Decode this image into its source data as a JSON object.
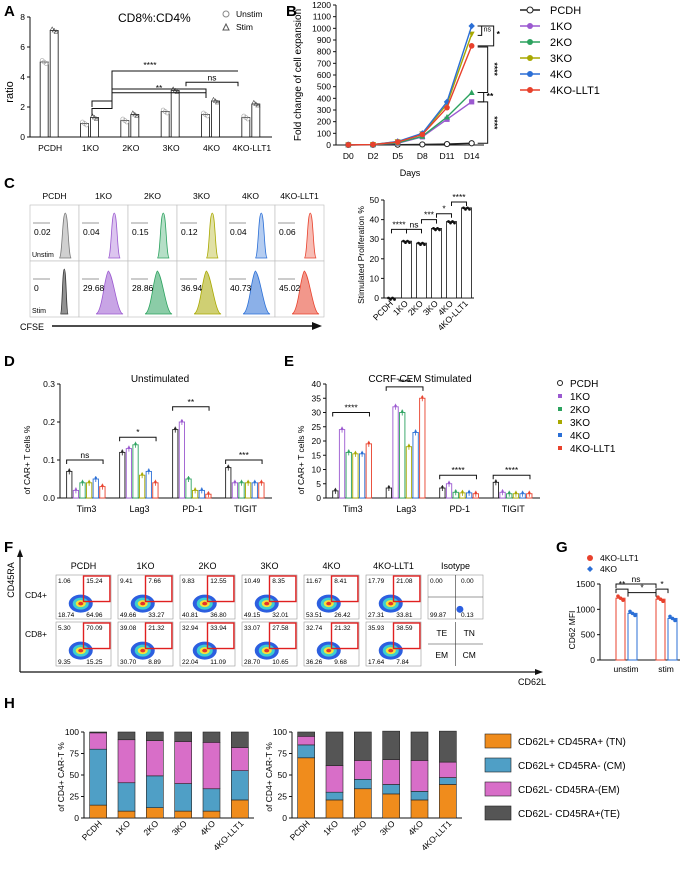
{
  "panels": [
    "A",
    "B",
    "C",
    "D",
    "E",
    "F",
    "G",
    "H"
  ],
  "colors": {
    "pcdh": "#222222",
    "ko1": "#9b59d0",
    "ko2": "#2ca25f",
    "ko3": "#a8a800",
    "ko4": "#2b6fd6",
    "ko4llt1": "#e8412c"
  },
  "groups": [
    "PCDH",
    "1KO",
    "2KO",
    "3KO",
    "4KO",
    "4KO-LLT1"
  ],
  "panelA": {
    "title": "CD8%:CD4%",
    "ylabel": "ratio",
    "legend": [
      "Unstim",
      "Stim"
    ],
    "sig": [
      "****",
      "**",
      "ns"
    ],
    "chart_data": {
      "type": "bar",
      "categories": [
        "PCDH",
        "1KO",
        "2KO",
        "3KO",
        "4KO",
        "4KO-LLT1"
      ],
      "series": [
        {
          "name": "Unstim",
          "values": [
            5.0,
            0.9,
            1.1,
            1.7,
            1.5,
            1.3
          ]
        },
        {
          "name": "Stim",
          "values": [
            7.1,
            1.3,
            1.5,
            3.1,
            2.4,
            2.2
          ]
        }
      ],
      "ylim": [
        0,
        8
      ],
      "yticks": [
        "0",
        "2",
        "4",
        "6",
        "8"
      ]
    }
  },
  "panelB": {
    "ylabel": "Fold change of cell expansion",
    "xlabel": "Days",
    "sig": [
      "ns",
      "*",
      "****",
      "**",
      "****"
    ],
    "chart_data": {
      "type": "line",
      "x": [
        "D0",
        "D2",
        "D5",
        "D8",
        "D11",
        "D14"
      ],
      "series": [
        {
          "name": "PCDH",
          "values": [
            1,
            2,
            3,
            5,
            8,
            15
          ]
        },
        {
          "name": "1KO",
          "values": [
            1,
            3,
            15,
            70,
            220,
            370
          ]
        },
        {
          "name": "2KO",
          "values": [
            1,
            3,
            18,
            75,
            240,
            450
          ]
        },
        {
          "name": "3KO",
          "values": [
            1,
            4,
            28,
            95,
            350,
            950
          ]
        },
        {
          "name": "4KO",
          "values": [
            1,
            4,
            30,
            100,
            370,
            1020
          ]
        },
        {
          "name": "4KO-LLT1",
          "values": [
            1,
            4,
            25,
            90,
            320,
            850
          ]
        }
      ],
      "ylim": [
        0,
        1200
      ],
      "yticks": [
        "0",
        "100",
        "200",
        "300",
        "400",
        "500",
        "600",
        "700",
        "800",
        "900",
        "1000",
        "1100",
        "1200"
      ]
    }
  },
  "panelC": {
    "unstim_label": "Unstim",
    "stim_label": "Stim",
    "xlabel": "CFSE",
    "unstim_values": [
      "0.02",
      "0.04",
      "0.15",
      "0.12",
      "0.04",
      "0.06"
    ],
    "stim_values": [
      "0",
      "29.68",
      "28.86",
      "36.94",
      "40.73",
      "45.02"
    ],
    "bar_ylabel": "Stimulated Proliferation %",
    "sig": [
      "****",
      "ns",
      "***",
      "*",
      "****"
    ],
    "chart_data": {
      "type": "bar",
      "categories": [
        "PCDH",
        "1KO",
        "2KO",
        "3KO",
        "4KO",
        "4KO-LLT1"
      ],
      "values": [
        0,
        29,
        28,
        35.5,
        39,
        46
      ],
      "ylim": [
        0,
        50
      ],
      "yticks": [
        "0",
        "10",
        "20",
        "30",
        "40",
        "50"
      ]
    }
  },
  "panelD": {
    "title": "Unstimulated",
    "ylabel": "of CAR+ T cells %",
    "sig": [
      "ns",
      "*",
      "**",
      "***"
    ],
    "chart_data": {
      "type": "bar",
      "categories": [
        "Tim3",
        "Lag3",
        "PD-1",
        "TIGIT"
      ],
      "series": [
        {
          "name": "PCDH",
          "values": [
            0.07,
            0.12,
            0.18,
            0.08
          ]
        },
        {
          "name": "1KO",
          "values": [
            0.02,
            0.13,
            0.2,
            0.04
          ]
        },
        {
          "name": "2KO",
          "values": [
            0.04,
            0.14,
            0.05,
            0.04
          ]
        },
        {
          "name": "3KO",
          "values": [
            0.04,
            0.06,
            0.02,
            0.04
          ]
        },
        {
          "name": "4KO",
          "values": [
            0.05,
            0.07,
            0.02,
            0.04
          ]
        },
        {
          "name": "4KO-LLT1",
          "values": [
            0.03,
            0.04,
            0.01,
            0.04
          ]
        }
      ],
      "ylim": [
        0,
        0.3
      ],
      "yticks": [
        "0.0",
        "0.1",
        "0.2",
        "0.3"
      ]
    }
  },
  "panelE": {
    "title": "CCRF-CEM Stimulated",
    "ylabel": "of CAR+ T cells %",
    "sig": [
      "****",
      "****",
      "****",
      "****"
    ],
    "legend": [
      "PCDH",
      "1KO",
      "2KO",
      "3KO",
      "4KO",
      "4KO-LLT1"
    ],
    "chart_data": {
      "type": "bar",
      "categories": [
        "Tim3",
        "Lag3",
        "PD-1",
        "TIGIT"
      ],
      "series": [
        {
          "name": "PCDH",
          "values": [
            2.5,
            3.5,
            3.5,
            5.5
          ]
        },
        {
          "name": "1KO",
          "values": [
            24,
            32,
            5,
            2
          ]
        },
        {
          "name": "2KO",
          "values": [
            16,
            30,
            2,
            1.5
          ]
        },
        {
          "name": "3KO",
          "values": [
            15.5,
            18,
            1.8,
            1.5
          ]
        },
        {
          "name": "4KO",
          "values": [
            15.5,
            23,
            1.8,
            1.5
          ]
        },
        {
          "name": "4KO-LLT1",
          "values": [
            19,
            35,
            1.5,
            1.5
          ]
        }
      ],
      "ylim": [
        0,
        40
      ],
      "yticks": [
        "0",
        "5",
        "10",
        "15",
        "20",
        "25",
        "30",
        "35",
        "40"
      ]
    }
  },
  "panelF": {
    "yaxis": "CD45RA",
    "xaxis": "CD62L",
    "row1": "CD4+",
    "row2": "CD8+",
    "headers": [
      "PCDH",
      "1KO",
      "2KO",
      "3KO",
      "4KO",
      "4KO-LLT1",
      "Isotype"
    ],
    "cd4": [
      [
        "1.06",
        "15.24",
        "18.74",
        "64.96"
      ],
      [
        "9.41",
        "7.66",
        "49.66",
        "33.27"
      ],
      [
        "9.83",
        "12.55",
        "40.81",
        "36.80"
      ],
      [
        "10.49",
        "8.35",
        "49.15",
        "32.01"
      ],
      [
        "11.67",
        "8.41",
        "53.51",
        "26.42"
      ],
      [
        "17.79",
        "21.08",
        "27.31",
        "33.81"
      ]
    ],
    "cd8": [
      [
        "5.30",
        "70.09",
        "9.35",
        "15.25"
      ],
      [
        "39.08",
        "21.32",
        "30.70",
        "8.89"
      ],
      [
        "32.94",
        "33.94",
        "22.04",
        "11.09"
      ],
      [
        "33.07",
        "27.58",
        "28.70",
        "10.65"
      ],
      [
        "32.74",
        "21.32",
        "36.26",
        "9.68"
      ],
      [
        "35.93",
        "38.59",
        "17.64",
        "7.84"
      ]
    ],
    "isotype": [
      "0.00",
      "0.00",
      "99.87",
      "0.13"
    ],
    "quadrants": [
      "TE",
      "TN",
      "EM",
      "CM"
    ]
  },
  "panelG": {
    "ylabel": "CD62 MFI",
    "legend": [
      "4KO-LLT1",
      "4KO"
    ],
    "sig": [
      "**",
      "ns",
      "*",
      "*"
    ],
    "chart_data": {
      "type": "bar",
      "categories": [
        "unstim",
        "stim"
      ],
      "series": [
        {
          "name": "4KO-LLT1",
          "values": [
            1220,
            1200
          ]
        },
        {
          "name": "4KO",
          "values": [
            920,
            820
          ]
        }
      ],
      "ylim": [
        0,
        1500
      ],
      "yticks": [
        "0",
        "500",
        "1000",
        "1500"
      ]
    }
  },
  "panelH": {
    "ylabel": "of CD4+ CAR-T %",
    "legend": [
      "CD62L+ CD45RA+ (TN)",
      "CD62L+ CD45RA- (CM)",
      "CD62L- CD45RA-(EM)",
      "CD62L- CD45RA+(TE)"
    ],
    "chart_data": [
      {
        "type": "bar",
        "stacked": true,
        "categories": [
          "PCDH",
          "1KO",
          "2KO",
          "3KO",
          "4KO",
          "4KO-LLT1"
        ],
        "series": [
          {
            "name": "TN",
            "values": [
              15,
              8,
              12,
              8,
              8,
              21
            ]
          },
          {
            "name": "CM",
            "values": [
              65,
              33,
              37,
              32,
              26,
              34
            ]
          },
          {
            "name": "EM",
            "values": [
              19,
              50,
              41,
              49,
              54,
              27
            ]
          },
          {
            "name": "TE",
            "values": [
              1,
              9,
              10,
              11,
              12,
              18
            ]
          }
        ],
        "ylim": [
          0,
          100
        ],
        "yticks": [
          "0",
          "25",
          "50",
          "75",
          "100"
        ]
      },
      {
        "type": "bar",
        "stacked": true,
        "categories": [
          "PCDH",
          "1KO",
          "2KO",
          "3KO",
          "4KO",
          "4KO-LLT1"
        ],
        "series": [
          {
            "name": "TN",
            "values": [
              70,
              21,
              34,
              28,
              21,
              39
            ]
          },
          {
            "name": "CM",
            "values": [
              15,
              9,
              11,
              11,
              10,
              8
            ]
          },
          {
            "name": "EM",
            "values": [
              10,
              31,
              22,
              29,
              36,
              18
            ]
          },
          {
            "name": "TE",
            "values": [
              5,
              39,
              33,
              33,
              33,
              36
            ]
          }
        ],
        "ylim": [
          0,
          100
        ],
        "yticks": [
          "0",
          "25",
          "50",
          "75",
          "100"
        ]
      }
    ]
  }
}
